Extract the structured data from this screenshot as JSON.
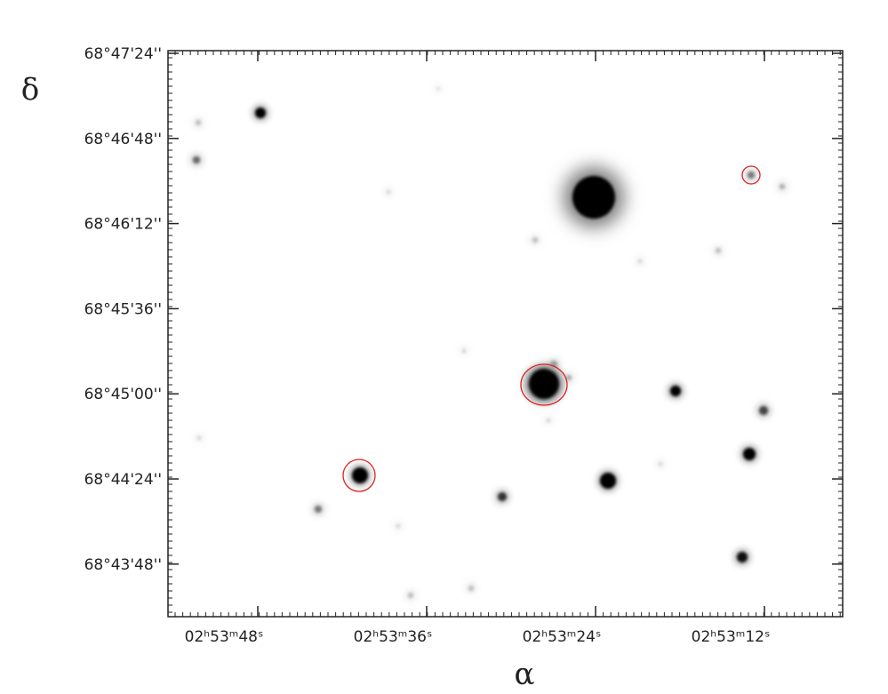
{
  "axes": {
    "x_label": "α",
    "y_label": "δ",
    "x_ticks": [
      "02ʰ53ᵐ48ˢ",
      "02ʰ53ᵐ36ˢ",
      "02ʰ53ᵐ24ˢ",
      "02ʰ53ᵐ12ˢ"
    ],
    "y_ticks": [
      "68°47'24''",
      "68°46'48''",
      "68°46'12''",
      "68°45'36''",
      "68°45'00''",
      "68°44'24''",
      "68°43'48''"
    ]
  }
}
